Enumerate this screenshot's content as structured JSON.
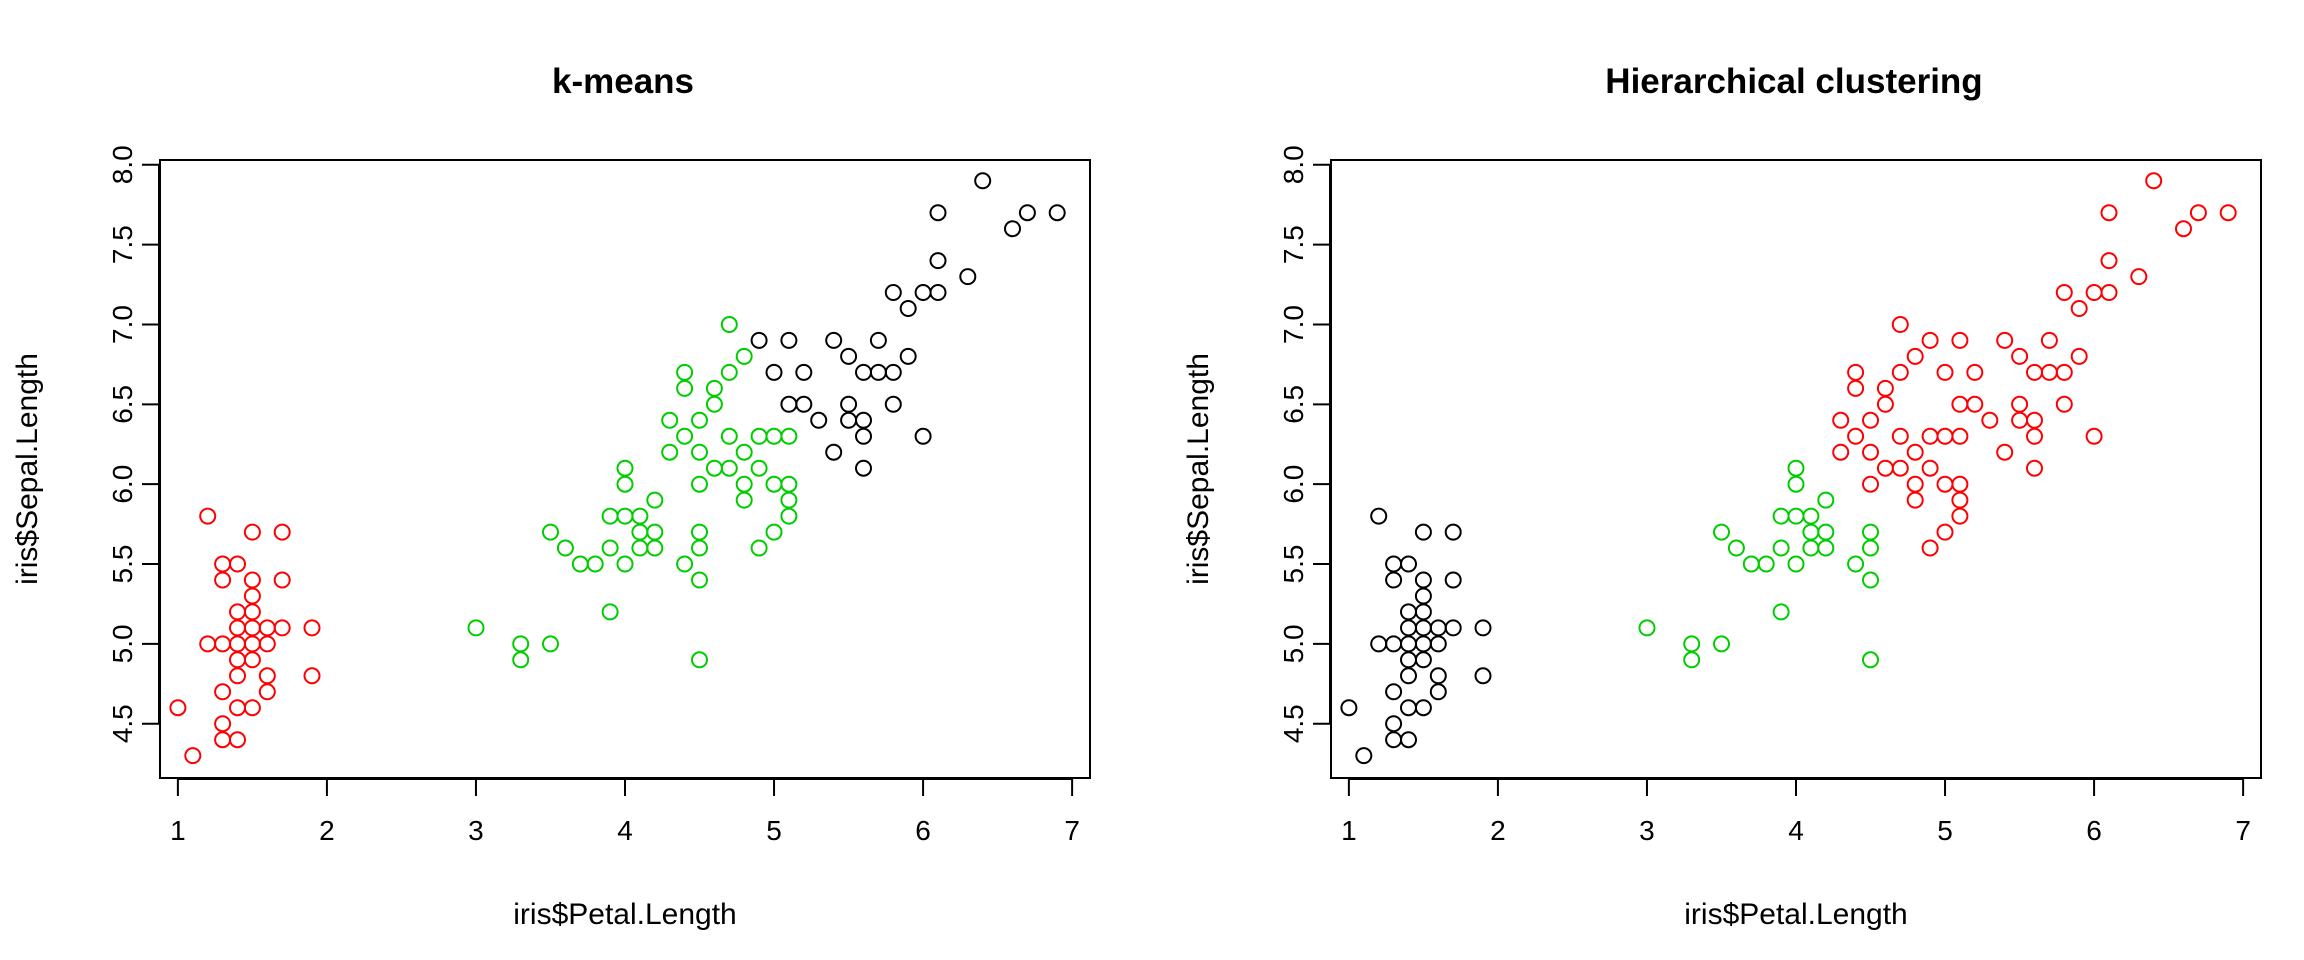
{
  "chart_data": [
    {
      "type": "scatter",
      "title": "k-means",
      "xlabel": "iris$Petal.Length",
      "ylabel": "iris$Sepal.Length",
      "xlim": [
        0.88,
        7.12
      ],
      "ylim": [
        4.16,
        8.03
      ],
      "xticks": [
        "1",
        "2",
        "3",
        "4",
        "5",
        "6",
        "7"
      ],
      "yticks": [
        "4.5",
        "5.0",
        "5.5",
        "6.0",
        "6.5",
        "7.0",
        "7.5",
        "8.0"
      ],
      "grid": false,
      "legend": "none",
      "marker": "open-circle",
      "series": [
        {
          "color": "#ff0000",
          "points": [
            [
              1.0,
              4.6
            ],
            [
              1.1,
              4.3
            ],
            [
              1.2,
              5.8
            ],
            [
              1.2,
              5.0
            ],
            [
              1.3,
              5.5
            ],
            [
              1.3,
              5.4
            ],
            [
              1.3,
              5.0
            ],
            [
              1.3,
              4.7
            ],
            [
              1.3,
              4.5
            ],
            [
              1.3,
              4.4
            ],
            [
              1.4,
              5.5
            ],
            [
              1.4,
              5.2
            ],
            [
              1.4,
              5.1
            ],
            [
              1.4,
              5.0
            ],
            [
              1.4,
              4.9
            ],
            [
              1.4,
              4.8
            ],
            [
              1.4,
              4.6
            ],
            [
              1.4,
              4.4
            ],
            [
              1.5,
              5.7
            ],
            [
              1.5,
              5.4
            ],
            [
              1.5,
              5.3
            ],
            [
              1.5,
              5.2
            ],
            [
              1.5,
              5.1
            ],
            [
              1.5,
              5.0
            ],
            [
              1.5,
              4.9
            ],
            [
              1.5,
              4.6
            ],
            [
              1.6,
              5.1
            ],
            [
              1.6,
              5.0
            ],
            [
              1.6,
              4.8
            ],
            [
              1.6,
              4.7
            ],
            [
              1.7,
              5.7
            ],
            [
              1.7,
              5.4
            ],
            [
              1.7,
              5.1
            ],
            [
              1.9,
              5.1
            ],
            [
              1.9,
              4.8
            ]
          ]
        },
        {
          "color": "#00cd00",
          "points": [
            [
              3.0,
              5.1
            ],
            [
              3.3,
              5.0
            ],
            [
              3.3,
              4.9
            ],
            [
              3.5,
              5.7
            ],
            [
              3.5,
              5.0
            ],
            [
              3.6,
              5.6
            ],
            [
              3.7,
              5.5
            ],
            [
              3.8,
              5.5
            ],
            [
              3.9,
              5.8
            ],
            [
              3.9,
              5.6
            ],
            [
              3.9,
              5.2
            ],
            [
              4.0,
              6.1
            ],
            [
              4.0,
              6.0
            ],
            [
              4.0,
              5.8
            ],
            [
              4.0,
              5.5
            ],
            [
              4.1,
              5.8
            ],
            [
              4.1,
              5.7
            ],
            [
              4.1,
              5.6
            ],
            [
              4.2,
              5.9
            ],
            [
              4.2,
              5.7
            ],
            [
              4.2,
              5.6
            ],
            [
              4.3,
              6.4
            ],
            [
              4.3,
              6.2
            ],
            [
              4.4,
              6.7
            ],
            [
              4.4,
              6.6
            ],
            [
              4.4,
              6.3
            ],
            [
              4.4,
              5.5
            ],
            [
              4.5,
              6.4
            ],
            [
              4.5,
              6.2
            ],
            [
              4.5,
              6.0
            ],
            [
              4.5,
              5.7
            ],
            [
              4.5,
              5.6
            ],
            [
              4.5,
              5.4
            ],
            [
              4.5,
              4.9
            ],
            [
              4.6,
              6.6
            ],
            [
              4.6,
              6.5
            ],
            [
              4.6,
              6.1
            ],
            [
              4.7,
              7.0
            ],
            [
              4.7,
              6.7
            ],
            [
              4.7,
              6.3
            ],
            [
              4.7,
              6.1
            ],
            [
              4.8,
              6.8
            ],
            [
              4.8,
              6.2
            ],
            [
              4.8,
              6.0
            ],
            [
              4.8,
              5.9
            ],
            [
              4.9,
              6.3
            ],
            [
              4.9,
              6.1
            ],
            [
              4.9,
              5.6
            ],
            [
              5.0,
              6.3
            ],
            [
              5.0,
              6.0
            ],
            [
              5.0,
              5.7
            ],
            [
              5.1,
              6.3
            ],
            [
              5.1,
              6.0
            ],
            [
              5.1,
              5.9
            ],
            [
              5.1,
              5.8
            ]
          ]
        },
        {
          "color": "#000000",
          "points": [
            [
              4.9,
              6.9
            ],
            [
              5.0,
              6.7
            ],
            [
              5.1,
              6.9
            ],
            [
              5.1,
              6.5
            ],
            [
              5.2,
              6.7
            ],
            [
              5.2,
              6.5
            ],
            [
              5.3,
              6.4
            ],
            [
              5.4,
              6.9
            ],
            [
              5.4,
              6.2
            ],
            [
              5.5,
              6.8
            ],
            [
              5.5,
              6.5
            ],
            [
              5.5,
              6.4
            ],
            [
              5.6,
              6.7
            ],
            [
              5.6,
              6.4
            ],
            [
              5.6,
              6.3
            ],
            [
              5.6,
              6.1
            ],
            [
              5.7,
              6.9
            ],
            [
              5.7,
              6.7
            ],
            [
              5.8,
              7.2
            ],
            [
              5.8,
              6.7
            ],
            [
              5.8,
              6.5
            ],
            [
              5.9,
              7.1
            ],
            [
              5.9,
              6.8
            ],
            [
              6.0,
              7.2
            ],
            [
              6.0,
              6.3
            ],
            [
              6.1,
              7.7
            ],
            [
              6.1,
              7.4
            ],
            [
              6.1,
              7.2
            ],
            [
              6.3,
              7.3
            ],
            [
              6.4,
              7.9
            ],
            [
              6.6,
              7.6
            ],
            [
              6.7,
              7.7
            ],
            [
              6.9,
              7.7
            ]
          ]
        }
      ]
    },
    {
      "type": "scatter",
      "title": "Hierarchical clustering",
      "xlabel": "iris$Petal.Length",
      "ylabel": "iris$Sepal.Length",
      "xlim": [
        0.88,
        7.12
      ],
      "ylim": [
        4.16,
        8.03
      ],
      "xticks": [
        "1",
        "2",
        "3",
        "4",
        "5",
        "6",
        "7"
      ],
      "yticks": [
        "4.5",
        "5.0",
        "5.5",
        "6.0",
        "6.5",
        "7.0",
        "7.5",
        "8.0"
      ],
      "grid": false,
      "legend": "none",
      "marker": "open-circle",
      "series": [
        {
          "color": "#000000",
          "points": [
            [
              1.0,
              4.6
            ],
            [
              1.1,
              4.3
            ],
            [
              1.2,
              5.8
            ],
            [
              1.2,
              5.0
            ],
            [
              1.3,
              5.5
            ],
            [
              1.3,
              5.4
            ],
            [
              1.3,
              5.0
            ],
            [
              1.3,
              4.7
            ],
            [
              1.3,
              4.5
            ],
            [
              1.3,
              4.4
            ],
            [
              1.4,
              5.5
            ],
            [
              1.4,
              5.2
            ],
            [
              1.4,
              5.1
            ],
            [
              1.4,
              5.0
            ],
            [
              1.4,
              4.9
            ],
            [
              1.4,
              4.8
            ],
            [
              1.4,
              4.6
            ],
            [
              1.4,
              4.4
            ],
            [
              1.5,
              5.7
            ],
            [
              1.5,
              5.4
            ],
            [
              1.5,
              5.3
            ],
            [
              1.5,
              5.2
            ],
            [
              1.5,
              5.1
            ],
            [
              1.5,
              5.0
            ],
            [
              1.5,
              4.9
            ],
            [
              1.5,
              4.6
            ],
            [
              1.6,
              5.1
            ],
            [
              1.6,
              5.0
            ],
            [
              1.6,
              4.8
            ],
            [
              1.6,
              4.7
            ],
            [
              1.7,
              5.7
            ],
            [
              1.7,
              5.4
            ],
            [
              1.7,
              5.1
            ],
            [
              1.9,
              5.1
            ],
            [
              1.9,
              4.8
            ]
          ]
        },
        {
          "color": "#00cd00",
          "points": [
            [
              3.0,
              5.1
            ],
            [
              3.3,
              5.0
            ],
            [
              3.3,
              4.9
            ],
            [
              3.5,
              5.7
            ],
            [
              3.5,
              5.0
            ],
            [
              3.6,
              5.6
            ],
            [
              3.7,
              5.5
            ],
            [
              3.8,
              5.5
            ],
            [
              3.9,
              5.8
            ],
            [
              3.9,
              5.6
            ],
            [
              3.9,
              5.2
            ],
            [
              4.0,
              6.1
            ],
            [
              4.0,
              6.0
            ],
            [
              4.0,
              5.8
            ],
            [
              4.0,
              5.5
            ],
            [
              4.1,
              5.8
            ],
            [
              4.1,
              5.7
            ],
            [
              4.1,
              5.6
            ],
            [
              4.2,
              5.9
            ],
            [
              4.2,
              5.7
            ],
            [
              4.2,
              5.6
            ],
            [
              4.4,
              5.5
            ],
            [
              4.5,
              5.7
            ],
            [
              4.5,
              5.6
            ],
            [
              4.5,
              5.4
            ],
            [
              4.5,
              4.9
            ]
          ]
        },
        {
          "color": "#ff0000",
          "points": [
            [
              4.3,
              6.4
            ],
            [
              4.3,
              6.2
            ],
            [
              4.4,
              6.7
            ],
            [
              4.4,
              6.6
            ],
            [
              4.4,
              6.3
            ],
            [
              4.5,
              6.4
            ],
            [
              4.5,
              6.2
            ],
            [
              4.5,
              6.0
            ],
            [
              4.6,
              6.6
            ],
            [
              4.6,
              6.5
            ],
            [
              4.6,
              6.1
            ],
            [
              4.7,
              7.0
            ],
            [
              4.7,
              6.7
            ],
            [
              4.7,
              6.3
            ],
            [
              4.7,
              6.1
            ],
            [
              4.8,
              6.8
            ],
            [
              4.8,
              6.2
            ],
            [
              4.8,
              6.0
            ],
            [
              4.8,
              5.9
            ],
            [
              4.9,
              6.9
            ],
            [
              4.9,
              6.3
            ],
            [
              4.9,
              6.1
            ],
            [
              4.9,
              5.6
            ],
            [
              5.0,
              6.7
            ],
            [
              5.0,
              6.3
            ],
            [
              5.0,
              6.0
            ],
            [
              5.0,
              5.7
            ],
            [
              5.1,
              6.9
            ],
            [
              5.1,
              6.5
            ],
            [
              5.1,
              6.3
            ],
            [
              5.1,
              6.0
            ],
            [
              5.1,
              5.9
            ],
            [
              5.1,
              5.8
            ],
            [
              5.2,
              6.7
            ],
            [
              5.2,
              6.5
            ],
            [
              5.3,
              6.4
            ],
            [
              5.4,
              6.9
            ],
            [
              5.4,
              6.2
            ],
            [
              5.5,
              6.8
            ],
            [
              5.5,
              6.5
            ],
            [
              5.5,
              6.4
            ],
            [
              5.6,
              6.7
            ],
            [
              5.6,
              6.4
            ],
            [
              5.6,
              6.3
            ],
            [
              5.6,
              6.1
            ],
            [
              5.7,
              6.9
            ],
            [
              5.7,
              6.7
            ],
            [
              5.8,
              7.2
            ],
            [
              5.8,
              6.7
            ],
            [
              5.8,
              6.5
            ],
            [
              5.9,
              7.1
            ],
            [
              5.9,
              6.8
            ],
            [
              6.0,
              7.2
            ],
            [
              6.0,
              6.3
            ],
            [
              6.1,
              7.7
            ],
            [
              6.1,
              7.4
            ],
            [
              6.1,
              7.2
            ],
            [
              6.3,
              7.3
            ],
            [
              6.4,
              7.9
            ],
            [
              6.6,
              7.6
            ],
            [
              6.7,
              7.7
            ],
            [
              6.9,
              7.7
            ]
          ]
        }
      ]
    }
  ]
}
